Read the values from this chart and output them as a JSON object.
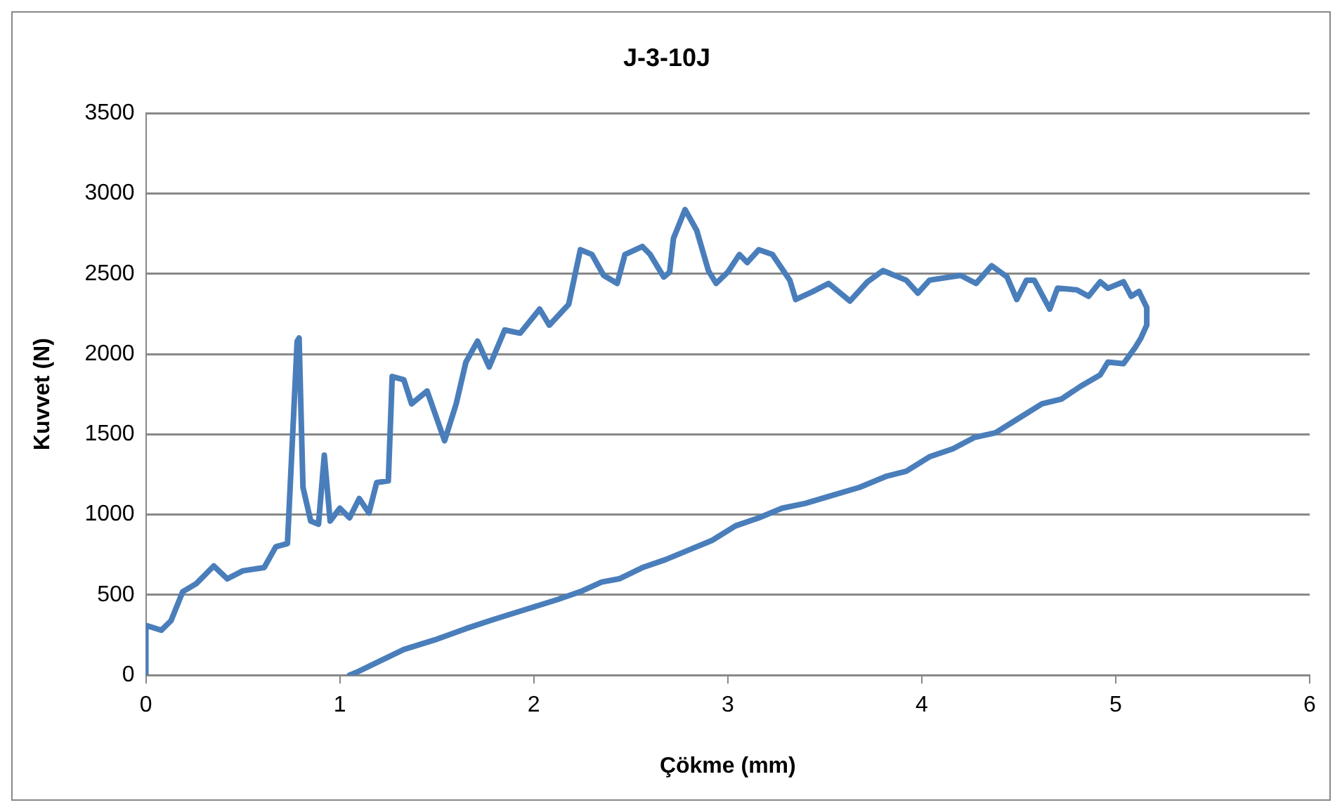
{
  "chart_data": {
    "type": "line",
    "title": "J-3-10J",
    "xlabel": "Çökme (mm)",
    "ylabel": "Kuvvet (N)",
    "xlim": [
      0,
      6
    ],
    "xticks": [
      0,
      1,
      2,
      3,
      4,
      5,
      6
    ],
    "ylim": [
      0,
      3500
    ],
    "yticks": [
      0,
      500,
      1000,
      1500,
      2000,
      2500,
      3000,
      3500
    ],
    "grid": "y",
    "legend": false,
    "marker": "none",
    "line_style": "solid",
    "series": [
      {
        "color": "#4a7ebb",
        "x": [
          0,
          0,
          0.08,
          0.13,
          0.19,
          0.26,
          0.35,
          0.42,
          0.5,
          0.61,
          0.67,
          0.73,
          0.78,
          0.79,
          0.81,
          0.85,
          0.89,
          0.92,
          0.95,
          1.0,
          1.05,
          1.1,
          1.15,
          1.19,
          1.25,
          1.27,
          1.33,
          1.37,
          1.45,
          1.54,
          1.6,
          1.65,
          1.71,
          1.77,
          1.85,
          1.93,
          2.03,
          2.08,
          2.18,
          2.24,
          2.3,
          2.36,
          2.43,
          2.47,
          2.56,
          2.6,
          2.67,
          2.7,
          2.72,
          2.78,
          2.84,
          2.9,
          2.94,
          3.0,
          3.06,
          3.1,
          3.16,
          3.23,
          3.32,
          3.35,
          3.44,
          3.52,
          3.63,
          3.72,
          3.8,
          3.92,
          3.98,
          4.04,
          4.2,
          4.28,
          4.36,
          4.44,
          4.49,
          4.54,
          4.58,
          4.66,
          4.7,
          4.8,
          4.86,
          4.92,
          4.96,
          5.04,
          5.08,
          5.12,
          5.16,
          5.16,
          5.13,
          5.1,
          5.04,
          4.96,
          4.92,
          4.82,
          4.72,
          4.62,
          4.5,
          4.38,
          4.27,
          4.16,
          4.04,
          3.92,
          3.82,
          3.68,
          3.54,
          3.4,
          3.28,
          3.16,
          3.04,
          2.92,
          2.8,
          2.68,
          2.56,
          2.44,
          2.35,
          2.24,
          2.12,
          1.96,
          1.8,
          1.65,
          1.49,
          1.33,
          1.21,
          1.09,
          1.05
        ],
        "values": [
          0,
          310,
          280,
          340,
          520,
          570,
          680,
          600,
          650,
          670,
          800,
          820,
          2080,
          2100,
          1170,
          960,
          940,
          1370,
          960,
          1040,
          980,
          1100,
          1010,
          1200,
          1210,
          1860,
          1840,
          1690,
          1770,
          1460,
          1690,
          1950,
          2080,
          1920,
          2150,
          2130,
          2280,
          2180,
          2310,
          2650,
          2620,
          2490,
          2440,
          2620,
          2670,
          2620,
          2480,
          2510,
          2720,
          2900,
          2770,
          2520,
          2440,
          2510,
          2620,
          2570,
          2650,
          2620,
          2460,
          2340,
          2390,
          2440,
          2330,
          2450,
          2520,
          2460,
          2380,
          2460,
          2490,
          2440,
          2550,
          2480,
          2340,
          2460,
          2460,
          2280,
          2410,
          2400,
          2360,
          2450,
          2410,
          2450,
          2360,
          2390,
          2290,
          2180,
          2100,
          2040,
          1940,
          1950,
          1870,
          1800,
          1720,
          1690,
          1600,
          1510,
          1480,
          1410,
          1360,
          1270,
          1240,
          1170,
          1120,
          1070,
          1040,
          980,
          930,
          840,
          780,
          720,
          670,
          600,
          580,
          520,
          470,
          410,
          350,
          290,
          220,
          160,
          90,
          20,
          0
        ]
      }
    ]
  }
}
